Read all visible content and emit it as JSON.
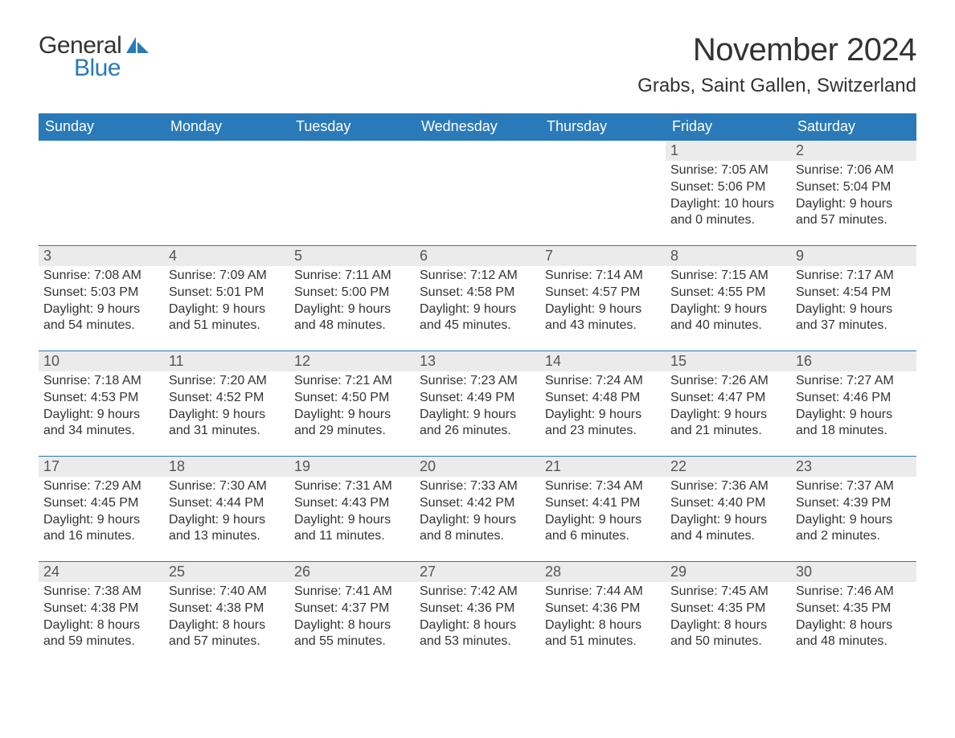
{
  "colors": {
    "header_bg": "#2a7ab9",
    "header_fg": "#ffffff",
    "page_bg": "#ffffff",
    "text": "#333333",
    "daynum_bg": "#ebebeb",
    "row_border": "#2a7ab9",
    "logo_blue": "#2a7ab9"
  },
  "typography": {
    "body_font": "Arial, Helvetica, sans-serif",
    "month_title_size_pt": 30,
    "location_size_pt": 18,
    "dayhead_size_pt": 14,
    "cell_size_pt": 12
  },
  "logo": {
    "general": "General",
    "blue": "Blue"
  },
  "title": "November 2024",
  "location": "Grabs, Saint Gallen, Switzerland",
  "day_headers": [
    "Sunday",
    "Monday",
    "Tuesday",
    "Wednesday",
    "Thursday",
    "Friday",
    "Saturday"
  ],
  "labels": {
    "sunrise_prefix": "Sunrise: ",
    "sunset_prefix": "Sunset: ",
    "daylight_prefix": "Daylight: "
  },
  "weeks": [
    [
      {
        "blank": true
      },
      {
        "blank": true
      },
      {
        "blank": true
      },
      {
        "blank": true
      },
      {
        "blank": true
      },
      {
        "day": "1",
        "sunrise": "7:05 AM",
        "sunset": "5:06 PM",
        "daylight": "10 hours and 0 minutes."
      },
      {
        "day": "2",
        "sunrise": "7:06 AM",
        "sunset": "5:04 PM",
        "daylight": "9 hours and 57 minutes."
      }
    ],
    [
      {
        "day": "3",
        "sunrise": "7:08 AM",
        "sunset": "5:03 PM",
        "daylight": "9 hours and 54 minutes."
      },
      {
        "day": "4",
        "sunrise": "7:09 AM",
        "sunset": "5:01 PM",
        "daylight": "9 hours and 51 minutes."
      },
      {
        "day": "5",
        "sunrise": "7:11 AM",
        "sunset": "5:00 PM",
        "daylight": "9 hours and 48 minutes."
      },
      {
        "day": "6",
        "sunrise": "7:12 AM",
        "sunset": "4:58 PM",
        "daylight": "9 hours and 45 minutes."
      },
      {
        "day": "7",
        "sunrise": "7:14 AM",
        "sunset": "4:57 PM",
        "daylight": "9 hours and 43 minutes."
      },
      {
        "day": "8",
        "sunrise": "7:15 AM",
        "sunset": "4:55 PM",
        "daylight": "9 hours and 40 minutes."
      },
      {
        "day": "9",
        "sunrise": "7:17 AM",
        "sunset": "4:54 PM",
        "daylight": "9 hours and 37 minutes."
      }
    ],
    [
      {
        "day": "10",
        "sunrise": "7:18 AM",
        "sunset": "4:53 PM",
        "daylight": "9 hours and 34 minutes."
      },
      {
        "day": "11",
        "sunrise": "7:20 AM",
        "sunset": "4:52 PM",
        "daylight": "9 hours and 31 minutes."
      },
      {
        "day": "12",
        "sunrise": "7:21 AM",
        "sunset": "4:50 PM",
        "daylight": "9 hours and 29 minutes."
      },
      {
        "day": "13",
        "sunrise": "7:23 AM",
        "sunset": "4:49 PM",
        "daylight": "9 hours and 26 minutes."
      },
      {
        "day": "14",
        "sunrise": "7:24 AM",
        "sunset": "4:48 PM",
        "daylight": "9 hours and 23 minutes."
      },
      {
        "day": "15",
        "sunrise": "7:26 AM",
        "sunset": "4:47 PM",
        "daylight": "9 hours and 21 minutes."
      },
      {
        "day": "16",
        "sunrise": "7:27 AM",
        "sunset": "4:46 PM",
        "daylight": "9 hours and 18 minutes."
      }
    ],
    [
      {
        "day": "17",
        "sunrise": "7:29 AM",
        "sunset": "4:45 PM",
        "daylight": "9 hours and 16 minutes."
      },
      {
        "day": "18",
        "sunrise": "7:30 AM",
        "sunset": "4:44 PM",
        "daylight": "9 hours and 13 minutes."
      },
      {
        "day": "19",
        "sunrise": "7:31 AM",
        "sunset": "4:43 PM",
        "daylight": "9 hours and 11 minutes."
      },
      {
        "day": "20",
        "sunrise": "7:33 AM",
        "sunset": "4:42 PM",
        "daylight": "9 hours and 8 minutes."
      },
      {
        "day": "21",
        "sunrise": "7:34 AM",
        "sunset": "4:41 PM",
        "daylight": "9 hours and 6 minutes."
      },
      {
        "day": "22",
        "sunrise": "7:36 AM",
        "sunset": "4:40 PM",
        "daylight": "9 hours and 4 minutes."
      },
      {
        "day": "23",
        "sunrise": "7:37 AM",
        "sunset": "4:39 PM",
        "daylight": "9 hours and 2 minutes."
      }
    ],
    [
      {
        "day": "24",
        "sunrise": "7:38 AM",
        "sunset": "4:38 PM",
        "daylight": "8 hours and 59 minutes."
      },
      {
        "day": "25",
        "sunrise": "7:40 AM",
        "sunset": "4:38 PM",
        "daylight": "8 hours and 57 minutes."
      },
      {
        "day": "26",
        "sunrise": "7:41 AM",
        "sunset": "4:37 PM",
        "daylight": "8 hours and 55 minutes."
      },
      {
        "day": "27",
        "sunrise": "7:42 AM",
        "sunset": "4:36 PM",
        "daylight": "8 hours and 53 minutes."
      },
      {
        "day": "28",
        "sunrise": "7:44 AM",
        "sunset": "4:36 PM",
        "daylight": "8 hours and 51 minutes."
      },
      {
        "day": "29",
        "sunrise": "7:45 AM",
        "sunset": "4:35 PM",
        "daylight": "8 hours and 50 minutes."
      },
      {
        "day": "30",
        "sunrise": "7:46 AM",
        "sunset": "4:35 PM",
        "daylight": "8 hours and 48 minutes."
      }
    ]
  ]
}
